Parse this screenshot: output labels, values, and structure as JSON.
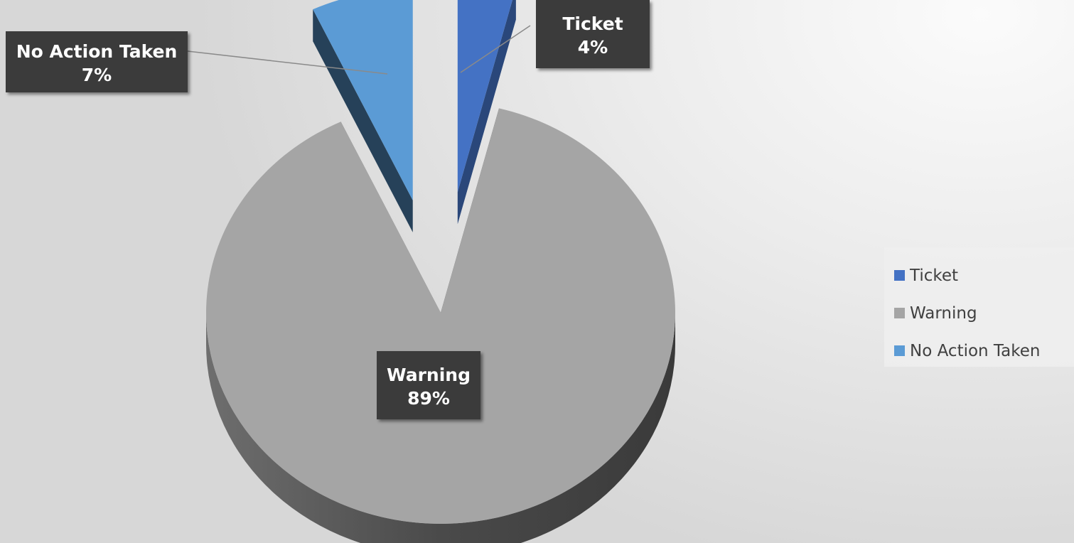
{
  "chart_data": {
    "type": "pie",
    "variant": "3d-exploded",
    "categories": [
      "Ticket",
      "Warning",
      "No Action Taken"
    ],
    "values": [
      4,
      89,
      7
    ],
    "data_labels": [
      "4%",
      "89%",
      "7%"
    ],
    "colors": [
      "#4472c4",
      "#a5a5a5",
      "#5b9bd5"
    ],
    "legend_position": "right",
    "title": ""
  }
}
